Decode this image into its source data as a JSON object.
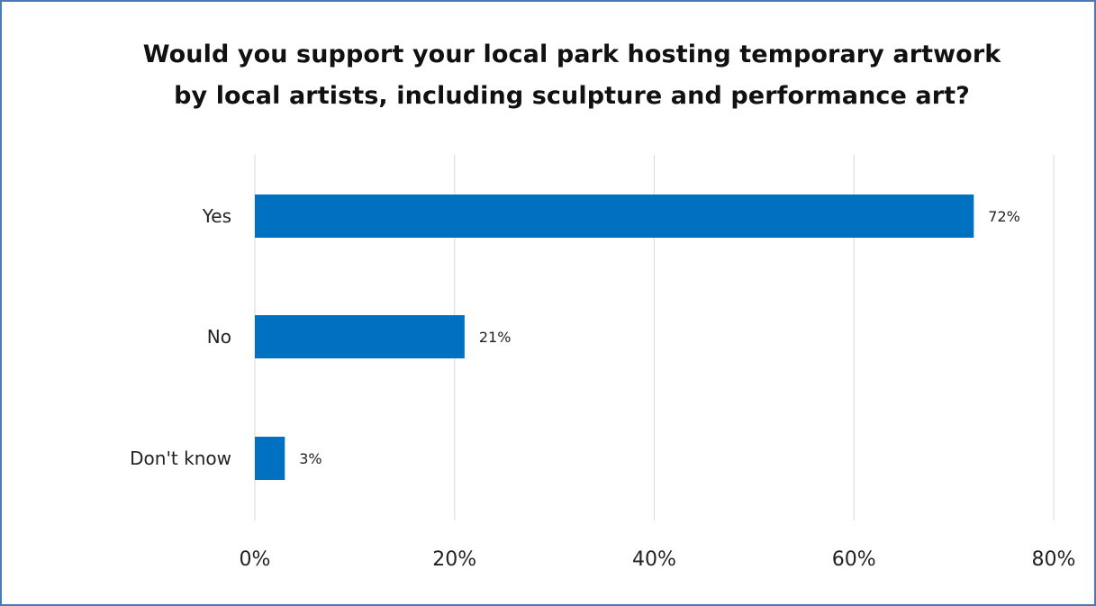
{
  "chart_data": {
    "type": "bar",
    "orientation": "horizontal",
    "title": "Would you support your local park hosting temporary artwork by local artists, including sculpture and performance art?",
    "title_lines": [
      "Would you support your local park hosting temporary artwork",
      "by local artists, including sculpture and performance art?"
    ],
    "categories": [
      "Yes",
      "No",
      "Don't know"
    ],
    "values": [
      72,
      21,
      3
    ],
    "value_labels": [
      "72%",
      "21%",
      "3%"
    ],
    "xlim": [
      0,
      80
    ],
    "xticks": [
      0,
      20,
      40,
      60,
      80
    ],
    "xtick_labels": [
      "0%",
      "20%",
      "40%",
      "60%",
      "80%"
    ],
    "grid": "vertical",
    "legend": "none",
    "bar_color": "#0070c0",
    "grid_color": "#d9d9d9",
    "border_color": "#4a7ab5"
  }
}
